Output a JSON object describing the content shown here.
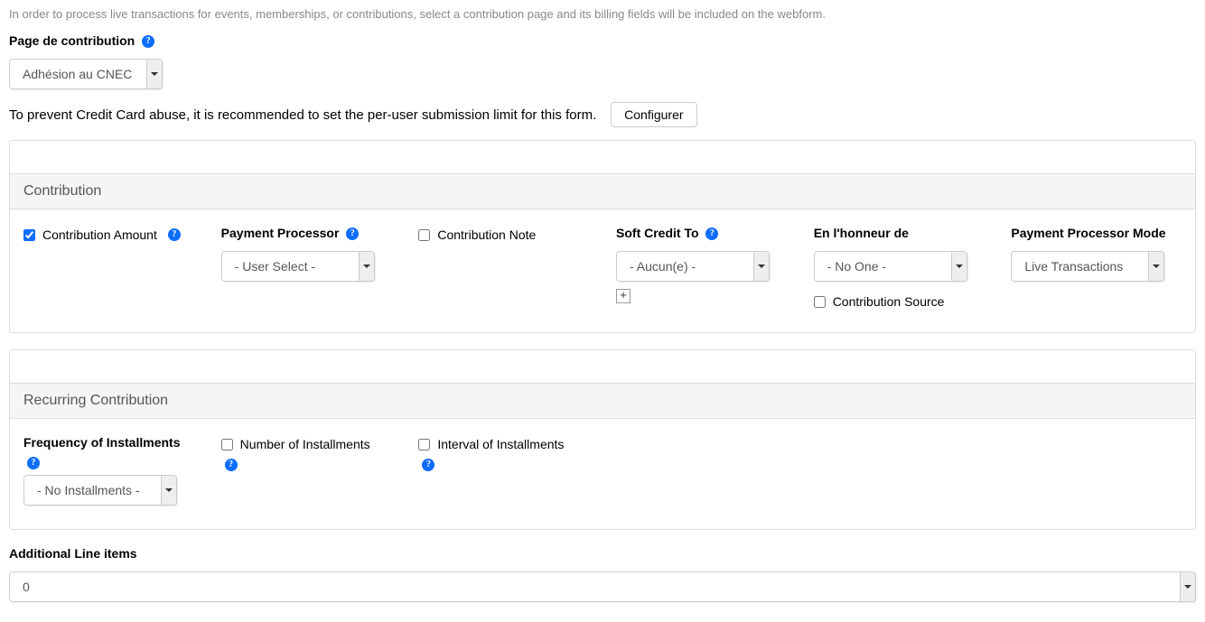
{
  "helpText": "In order to process live transactions for events, memberships, or contributions, select a contribution page and its billing fields will be included on the webform.",
  "contributionPage": {
    "label": "Page de contribution",
    "value": "Adhésion au CNEC"
  },
  "ccAbuse": {
    "message": "To prevent Credit Card abuse, it is recommended to set the per-user submission limit for this form.",
    "buttonLabel": "Configurer"
  },
  "panel1": {
    "title": "Contribution",
    "contributionAmount": {
      "label": "Contribution Amount",
      "checked": true
    },
    "paymentProcessor": {
      "label": "Payment Processor",
      "value": "- User Select -"
    },
    "contributionNote": {
      "label": "Contribution Note",
      "checked": false
    },
    "softCreditTo": {
      "label": "Soft Credit To",
      "value": "- Aucun(e) -"
    },
    "inHonorOf": {
      "label": "En l'honneur de",
      "value": "- No One -"
    },
    "contributionSource": {
      "label": "Contribution Source",
      "checked": false
    },
    "processorMode": {
      "label": "Payment Processor Mode",
      "value": "Live Transactions"
    }
  },
  "panel2": {
    "title": "Recurring Contribution",
    "frequency": {
      "label": "Frequency of Installments",
      "value": "- No Installments -"
    },
    "numberInstallments": {
      "label": "Number of Installments",
      "checked": false
    },
    "intervalInstallments": {
      "label": "Interval of Installments",
      "checked": false
    }
  },
  "additionalLineItems": {
    "label": "Additional Line items",
    "value": "0"
  }
}
